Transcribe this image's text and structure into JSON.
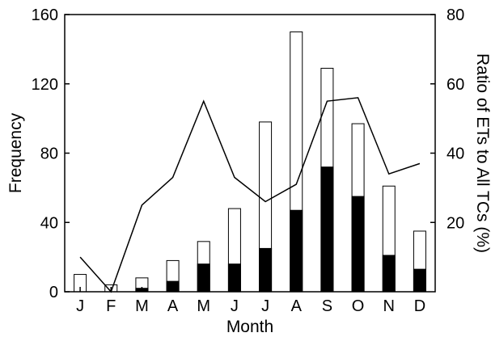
{
  "chart_data": {
    "type": "bar",
    "categories": [
      "J",
      "F",
      "M",
      "A",
      "M",
      "J",
      "J",
      "A",
      "S",
      "O",
      "N",
      "D"
    ],
    "series": [
      {
        "kind": "bar",
        "fill": "#ffffff",
        "axis": "left",
        "values": [
          10,
          4,
          8,
          18,
          29,
          48,
          98,
          150,
          129,
          97,
          61,
          35
        ]
      },
      {
        "kind": "bar",
        "fill": "#000000",
        "axis": "left",
        "values": [
          0,
          0,
          2,
          6,
          16,
          16,
          25,
          47,
          72,
          55,
          21,
          13
        ]
      },
      {
        "kind": "line",
        "axis": "right",
        "values": [
          10,
          0,
          25,
          33,
          55,
          33,
          26,
          31,
          55,
          56,
          34,
          37
        ]
      }
    ],
    "xlabel": "Month",
    "ylabel": "Frequency",
    "y2label": "Ratio of ETs to All TCs (%)",
    "ylim": [
      0,
      160
    ],
    "y2lim": [
      0,
      80
    ],
    "yticks": [
      0,
      40,
      80,
      120,
      160
    ],
    "y2ticks": [
      20,
      40,
      60,
      80
    ],
    "grid": false,
    "legend": "none"
  }
}
